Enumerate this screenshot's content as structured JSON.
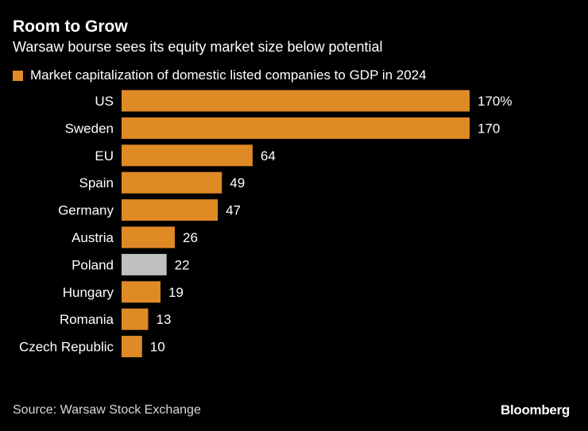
{
  "header": {
    "title": "Room to Grow",
    "subtitle": "Warsaw bourse sees its equity market size below potential"
  },
  "legend": {
    "label": "Market capitalization of domestic listed companies to GDP in 2024"
  },
  "colors": {
    "primary": "#e08a26",
    "highlight": "#c0c0c0",
    "background": "#000000"
  },
  "chart_data": {
    "type": "bar",
    "orientation": "horizontal",
    "title": "Room to Grow",
    "subtitle": "Warsaw bourse sees its equity market size below potential",
    "series": [
      {
        "name": "Market capitalization of domestic listed companies to GDP in 2024",
        "values": [
          170,
          170,
          64,
          49,
          47,
          26,
          22,
          19,
          13,
          10
        ]
      }
    ],
    "categories": [
      "US",
      "Sweden",
      "EU",
      "Spain",
      "Germany",
      "Austria",
      "Poland",
      "Hungary",
      "Romania",
      "Czech Republic"
    ],
    "values": [
      170,
      170,
      64,
      49,
      47,
      26,
      22,
      19,
      13,
      10
    ],
    "value_labels": [
      "170%",
      "170",
      "64",
      "49",
      "47",
      "26",
      "22",
      "19",
      "13",
      "10"
    ],
    "highlighted_category": "Poland",
    "xlabel": "",
    "ylabel": "",
    "xlim": [
      0,
      170
    ],
    "grid": false,
    "legend_position": "top-left"
  },
  "footer": {
    "source": "Source: Warsaw Stock Exchange",
    "brand": "Bloomberg"
  }
}
